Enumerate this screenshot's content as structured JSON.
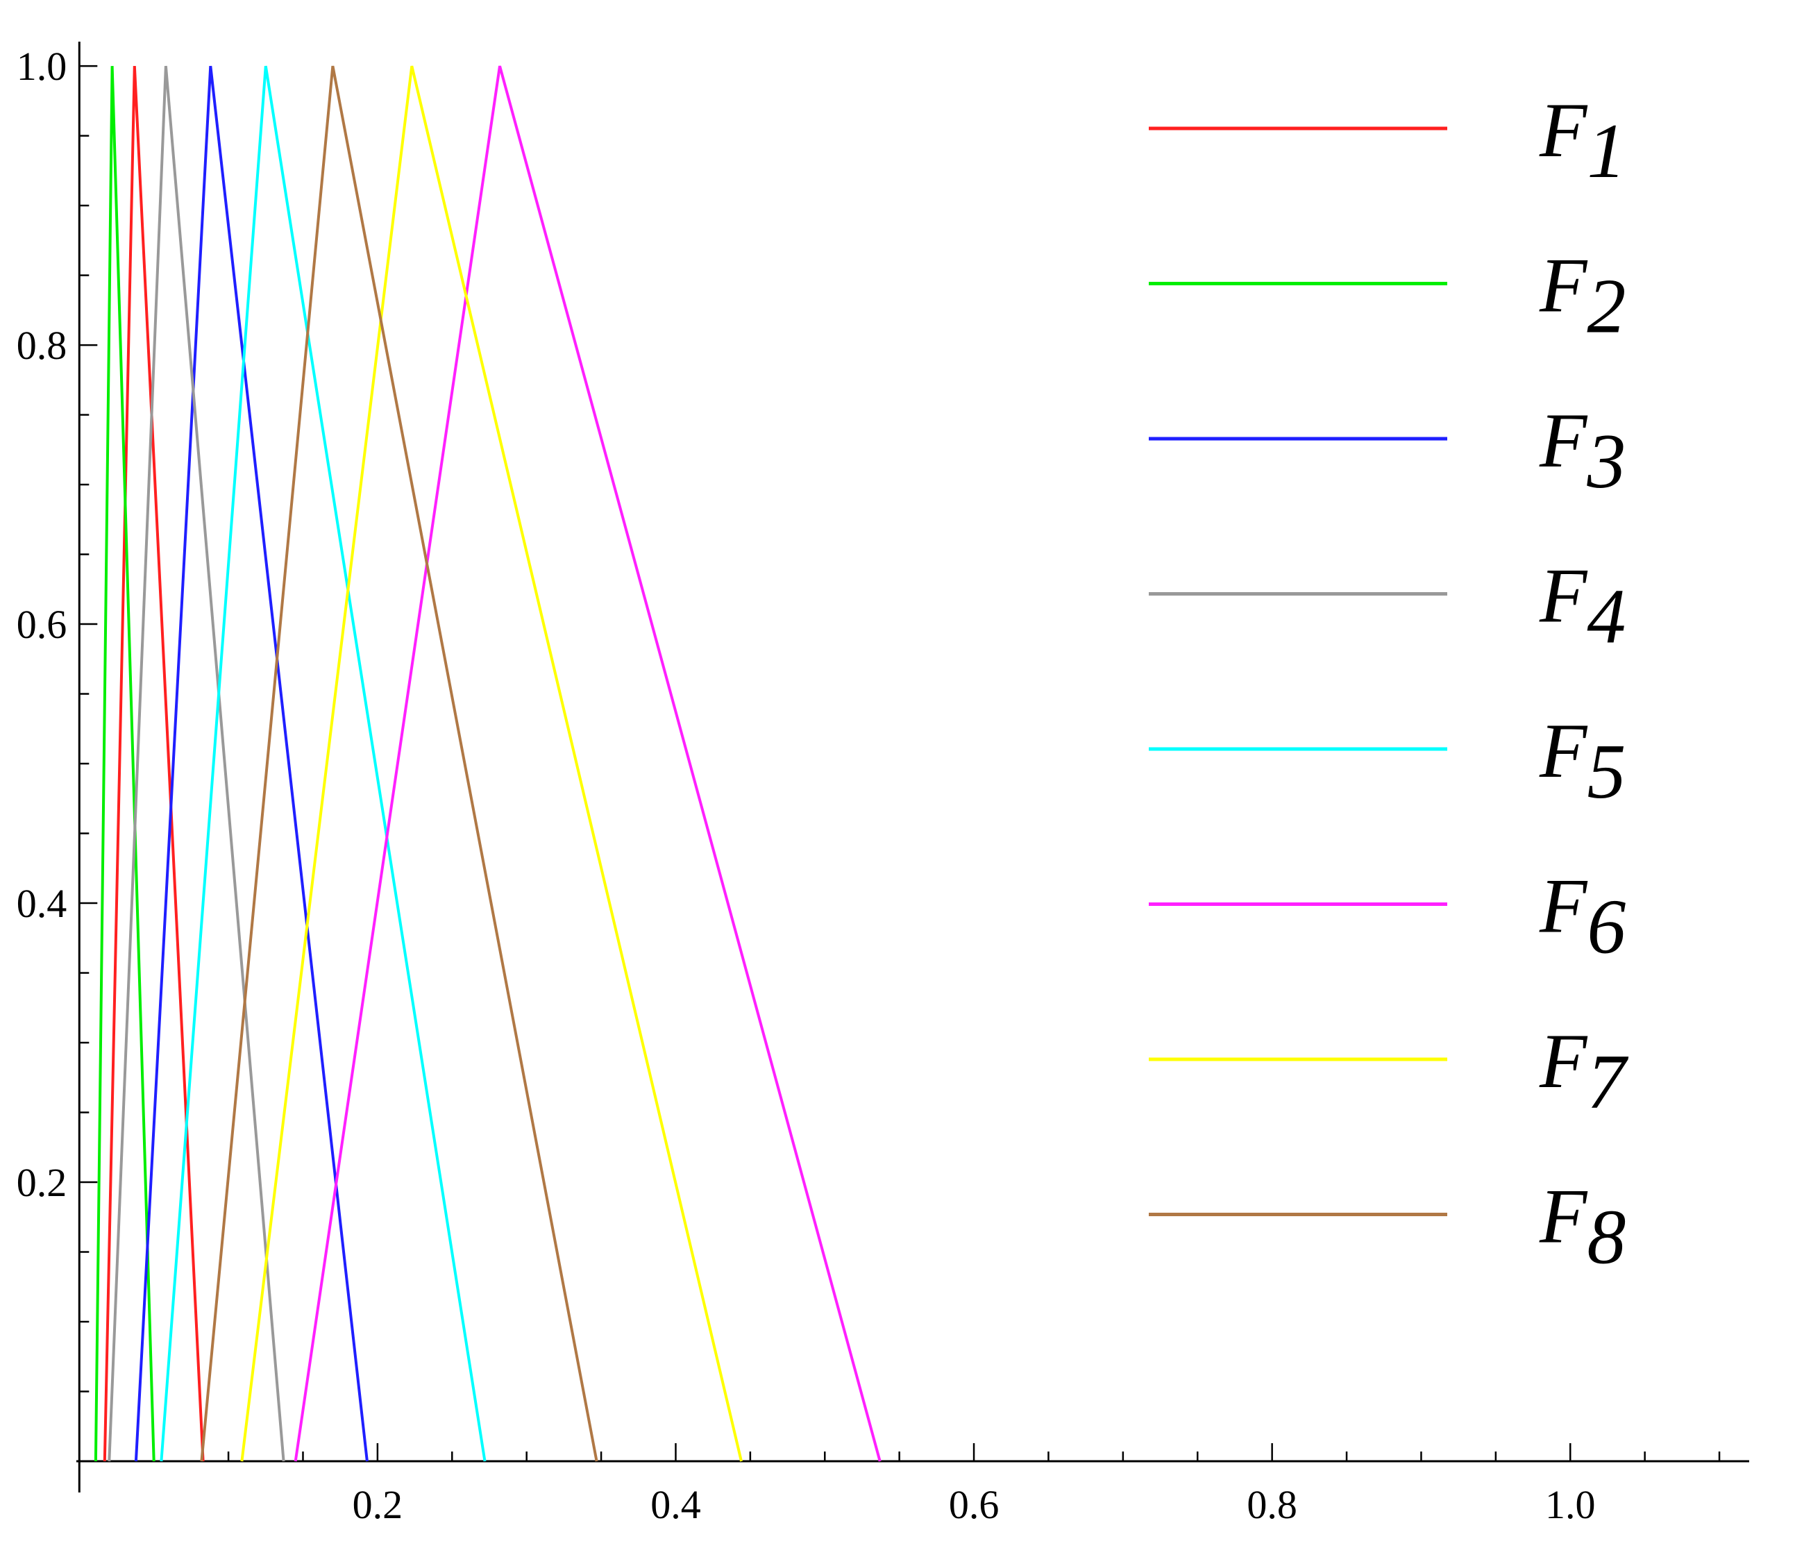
{
  "chart_data": {
    "type": "line",
    "title": "",
    "xlabel": "",
    "ylabel": "",
    "xlim": [
      -0.002,
      1.12
    ],
    "ylim": [
      0,
      1.01
    ],
    "x_ticks": [
      "0.2",
      "0.4",
      "0.6",
      "0.8",
      "1.0"
    ],
    "y_ticks": [
      "0.2",
      "0.4",
      "0.6",
      "0.8",
      "1.0"
    ],
    "grid": false,
    "legend_position": "right",
    "series": [
      {
        "name": "F",
        "subscript": "1",
        "color": "#ff2020",
        "x": [
          0.017,
          0.037,
          0.083
        ],
        "y": [
          0,
          1,
          0
        ]
      },
      {
        "name": "F",
        "subscript": "2",
        "color": "#00ee00",
        "x": [
          0.011,
          0.022,
          0.05
        ],
        "y": [
          0,
          1,
          0
        ]
      },
      {
        "name": "F",
        "subscript": "3",
        "color": "#1f1fff",
        "x": [
          0.038,
          0.088,
          0.193
        ],
        "y": [
          0,
          1,
          0
        ]
      },
      {
        "name": "F",
        "subscript": "4",
        "color": "#999999",
        "x": [
          0.02,
          0.058,
          0.137
        ],
        "y": [
          0,
          1,
          0
        ]
      },
      {
        "name": "F",
        "subscript": "5",
        "color": "#00ffff",
        "x": [
          0.055,
          0.125,
          0.272
        ],
        "y": [
          0,
          1,
          0
        ]
      },
      {
        "name": "F",
        "subscript": "6",
        "color": "#ff20ff",
        "x": [
          0.145,
          0.282,
          0.537
        ],
        "y": [
          0,
          1,
          0
        ]
      },
      {
        "name": "F",
        "subscript": "7",
        "color": "#ffff00",
        "x": [
          0.109,
          0.223,
          0.444
        ],
        "y": [
          0,
          1,
          0
        ]
      },
      {
        "name": "F",
        "subscript": "8",
        "color": "#b07845",
        "x": [
          0.082,
          0.17,
          0.347
        ],
        "y": [
          0,
          1,
          0
        ]
      }
    ]
  }
}
